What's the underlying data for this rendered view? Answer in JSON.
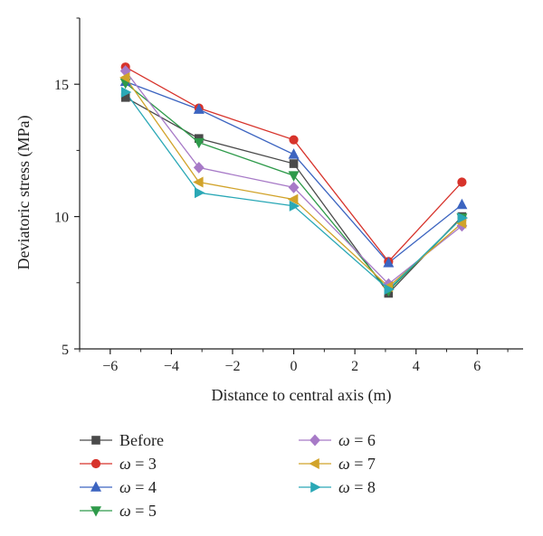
{
  "chart_data": {
    "type": "line",
    "xlabel": "Distance to central axis (m)",
    "ylabel": "Deviatoric stress (MPa)",
    "xlim": [
      -7,
      7.5
    ],
    "ylim": [
      5,
      17.5
    ],
    "xticks": [
      -6,
      -4,
      -2,
      0,
      2,
      4,
      6
    ],
    "xtick_labels": [
      "−6",
      "−4",
      "−2",
      "0",
      "2",
      "4",
      "6"
    ],
    "yticks": [
      5,
      10,
      15
    ],
    "ytick_labels": [
      "5",
      "10",
      "15"
    ],
    "grid": false,
    "legend_position": "bottom",
    "x": [
      -5.5,
      -3.1,
      0,
      3.1,
      5.5
    ],
    "series": [
      {
        "name": "Before",
        "italic_prefix": "",
        "suffix": "Before",
        "color": "#4a4a4a",
        "marker": "square",
        "values": [
          14.5,
          12.95,
          12.0,
          7.1,
          10.0
        ]
      },
      {
        "name": "ω = 3",
        "italic_prefix": "ω",
        "suffix": " = 3",
        "color": "#d7332b",
        "marker": "circle",
        "values": [
          15.65,
          14.1,
          12.9,
          8.3,
          11.3
        ]
      },
      {
        "name": "ω = 4",
        "italic_prefix": "ω",
        "suffix": " = 4",
        "color": "#3c64c0",
        "marker": "triangle-up",
        "values": [
          15.1,
          14.05,
          12.35,
          8.25,
          10.45
        ]
      },
      {
        "name": "ω = 5",
        "italic_prefix": "ω",
        "suffix": " = 5",
        "color": "#2e9a4a",
        "marker": "triangle-down",
        "values": [
          15.05,
          12.8,
          11.55,
          7.2,
          9.95
        ]
      },
      {
        "name": "ω = 6",
        "italic_prefix": "ω",
        "suffix": " = 6",
        "color": "#a77ac7",
        "marker": "diamond",
        "values": [
          15.5,
          11.85,
          11.1,
          7.45,
          9.65
        ]
      },
      {
        "name": "ω = 7",
        "italic_prefix": "ω",
        "suffix": " = 7",
        "color": "#d1a32a",
        "marker": "triangle-left",
        "values": [
          15.25,
          11.3,
          10.65,
          7.35,
          9.75
        ]
      },
      {
        "name": "ω = 8",
        "italic_prefix": "ω",
        "suffix": " = 8",
        "color": "#2aa8b6",
        "marker": "triangle-right",
        "values": [
          14.7,
          10.9,
          10.4,
          7.25,
          9.95
        ]
      }
    ]
  }
}
